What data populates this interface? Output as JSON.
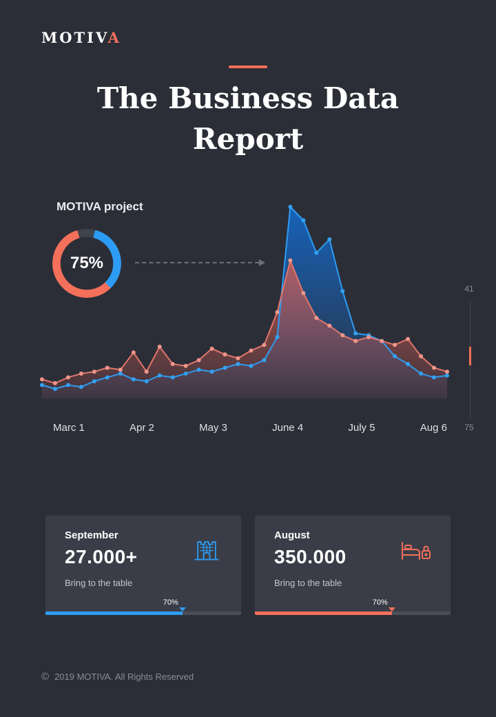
{
  "colors": {
    "background": "#2c2e37",
    "card_background": "#3a3d47",
    "accent": "#f4705b",
    "blue": "#2d9cf4",
    "donut_track": "#3f434c"
  },
  "header": {
    "logo_prefix": "MOTIV",
    "logo_accent": "A",
    "title_line1": "The Business Data",
    "title_line2": "Report"
  },
  "project": {
    "label": "MOTIVA project",
    "donut_percent": 75,
    "donut_value_label": "75%"
  },
  "chart_data": {
    "type": "area",
    "title": "MOTIVA project",
    "x_labels": [
      "Marc 1",
      "Apr 2",
      "May 3",
      "June 4",
      "July 5",
      "Aug 6"
    ],
    "y_max": 100,
    "grid": false,
    "legend": "none",
    "series": [
      {
        "name": "blue-series",
        "line_color": "#2d9cf4",
        "fill_color": "#1565c0",
        "dot_color": "#33a1f2",
        "values": [
          7,
          5,
          7,
          6,
          9,
          11,
          13,
          10,
          9,
          12,
          11,
          13,
          15,
          14,
          16,
          18,
          17,
          20,
          32,
          100,
          93,
          76,
          83,
          56,
          34,
          33,
          30,
          22,
          18,
          13,
          11,
          12
        ]
      },
      {
        "name": "red-series",
        "line_color": "#e2766a",
        "fill_color": "#d95f55",
        "dot_color": "#f0958a",
        "values": [
          10,
          8,
          11,
          13,
          14,
          16,
          15,
          24,
          14,
          27,
          18,
          17,
          20,
          26,
          23,
          21,
          25,
          28,
          45,
          72,
          55,
          42,
          38,
          33,
          30,
          32,
          30,
          28,
          31,
          22,
          16,
          14
        ]
      }
    ]
  },
  "scale_indicator": {
    "top": "41",
    "bottom": "75"
  },
  "cards": [
    {
      "month": "September",
      "value": "27.000+",
      "subtitle": "Bring to the table",
      "percent": 70,
      "percent_label": "70%",
      "icon": "building-icon",
      "color": "#2d9cf4"
    },
    {
      "month": "August",
      "value": "350.000",
      "subtitle": "Bring to the table",
      "percent": 70,
      "percent_label": "70%",
      "icon": "bed-lock-icon",
      "color": "#f4705b"
    }
  ],
  "footer": {
    "copyright_symbol": "©",
    "text": "2019 MOTIVA. All Rights Reserved"
  }
}
